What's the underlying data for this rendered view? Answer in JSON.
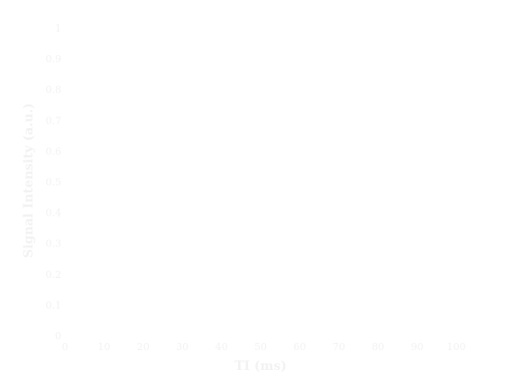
{
  "chart_data": {
    "type": "line",
    "title": "",
    "xlabel": "TI (ms)",
    "ylabel": "Signal Intensity (a.u.)",
    "xlim": [
      0,
      100
    ],
    "ylim": [
      0,
      1
    ],
    "x_ticks": [
      "0",
      "10",
      "20",
      "30",
      "40",
      "50",
      "60",
      "70",
      "80",
      "90",
      "100"
    ],
    "y_ticks": [
      "0",
      "0.1",
      "0.2",
      "0.3",
      "0.4",
      "0.5",
      "0.6",
      "0.7",
      "0.8",
      "0.9",
      "1"
    ],
    "grid": false,
    "series": [],
    "colors": {
      "text": "#f2f2f2",
      "background": "#ffffff"
    }
  }
}
